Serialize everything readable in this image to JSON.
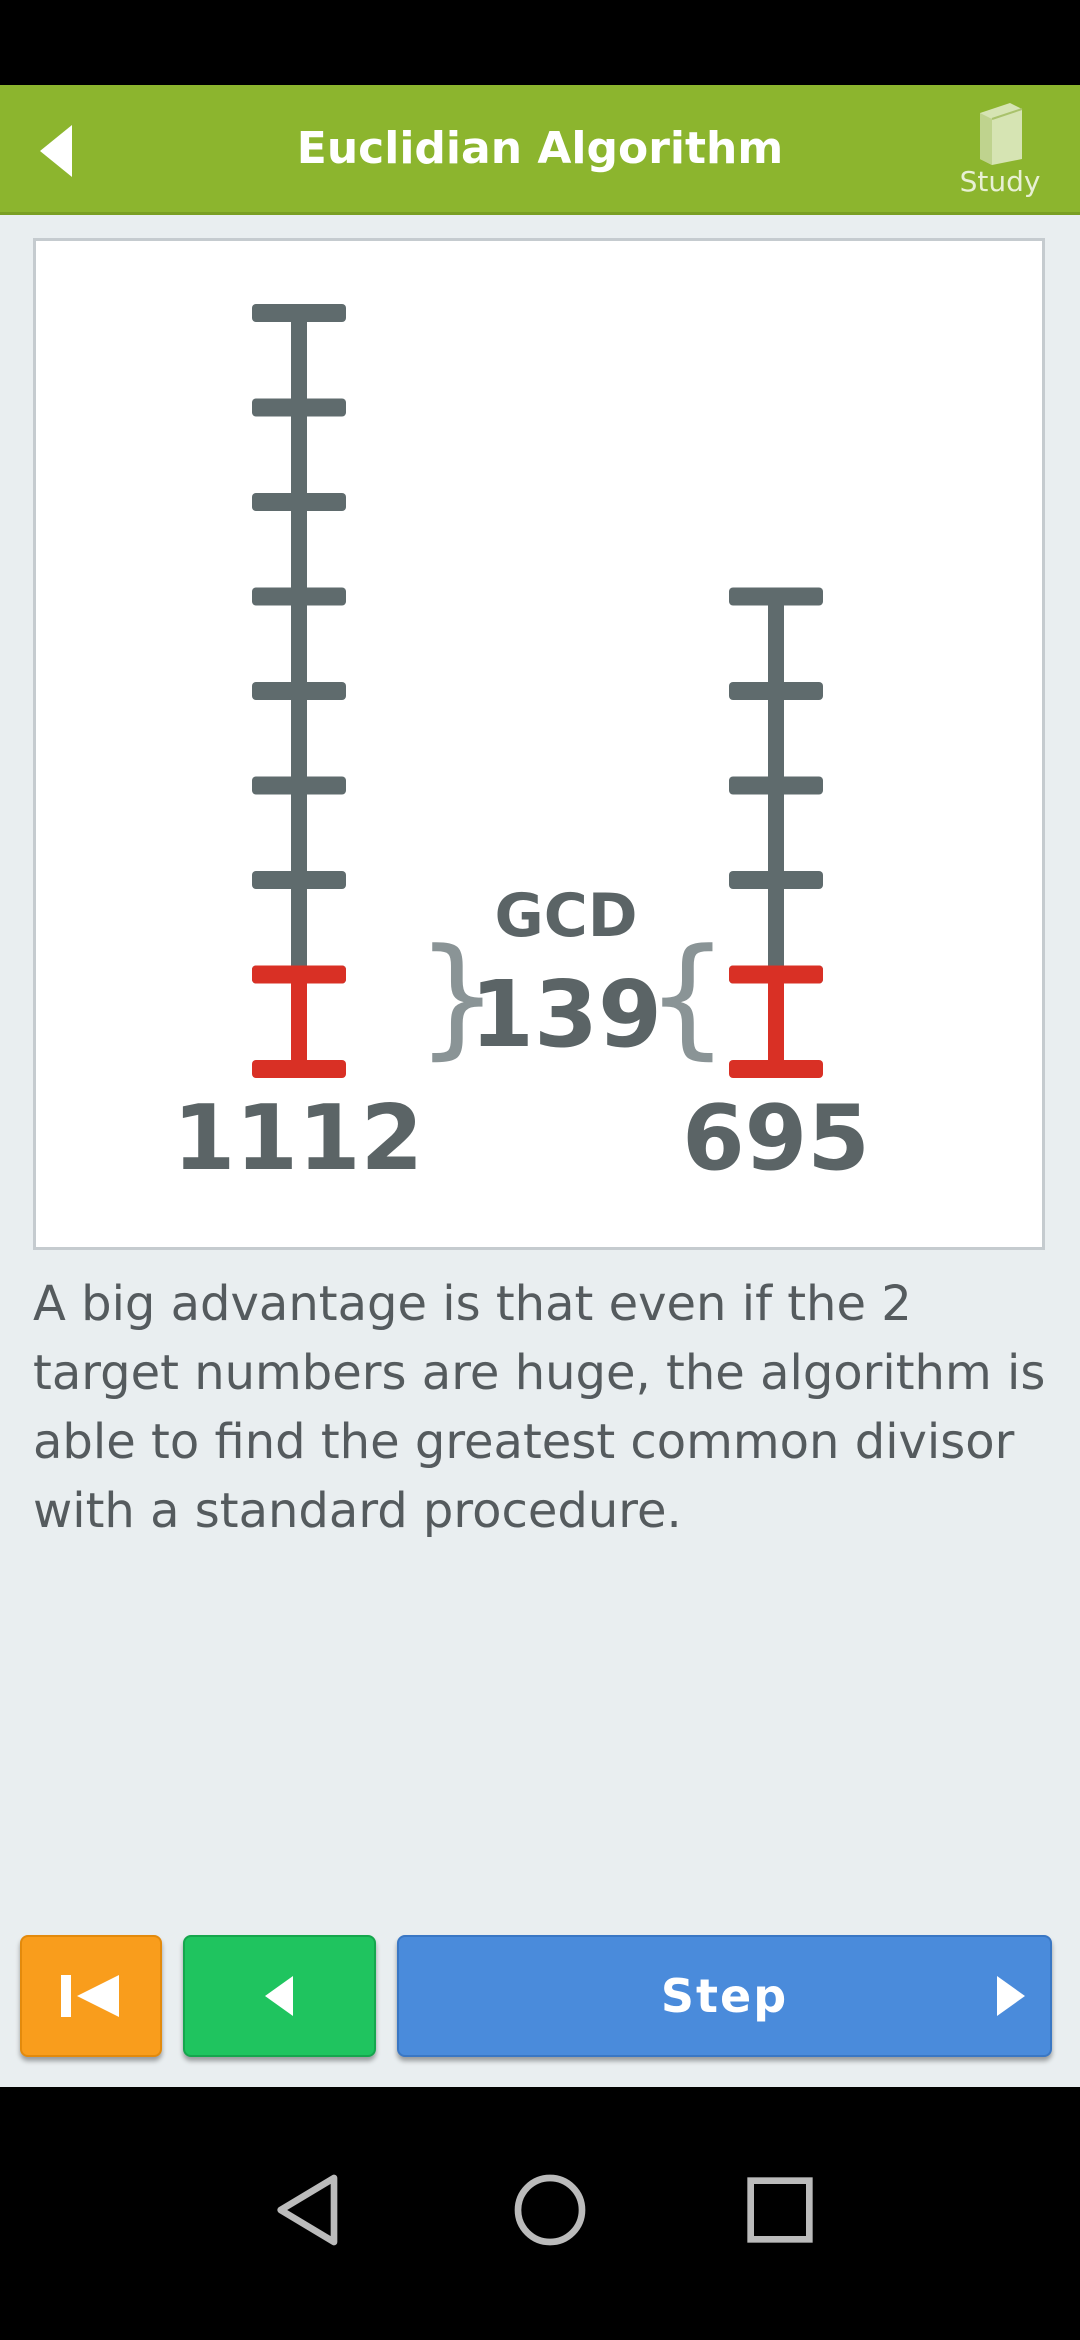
{
  "app_bar": {
    "title": "Euclidian Algorithm",
    "study_label": "Study"
  },
  "diagram": {
    "left_number": "1112",
    "right_number": "695",
    "gcd_label": "GCD",
    "gcd_value": "139",
    "left_segments": 8,
    "right_segments": 5,
    "bar_color": "#5f6b6d",
    "highlight_color": "#d93025"
  },
  "description": "A big advantage is that even if the 2 target numbers are huge, the algorithm is able to find the greatest common divisor with a standard procedure.",
  "controls": {
    "step_label": "Step"
  },
  "colors": {
    "app_bar": "#8cb52e",
    "reset_button": "#f99d1c",
    "prev_button": "#1fc45f",
    "step_button": "#4a8bdb"
  }
}
